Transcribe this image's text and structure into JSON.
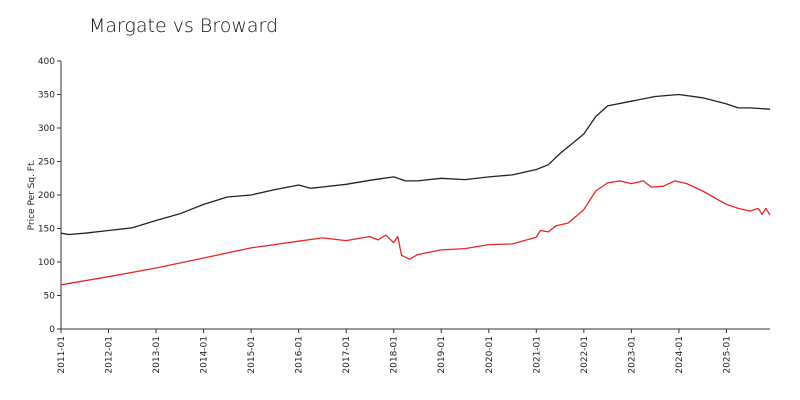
{
  "chart_data": {
    "type": "line",
    "title": "Margate vs Broward",
    "xlabel": "",
    "ylabel": "Price Per Sq. Ft.",
    "ylim": [
      0,
      400
    ],
    "xlim": [
      "2011-01",
      "2025-12"
    ],
    "y_ticks": [
      "0",
      "50",
      "100",
      "150",
      "200",
      "250",
      "300",
      "350",
      "400"
    ],
    "x_ticks": [
      "2011-01",
      "2012-01",
      "2013-01",
      "2014-01",
      "2015-01",
      "2016-01",
      "2017-01",
      "2018-01",
      "2019-01",
      "2020-01",
      "2021-01",
      "2022-01",
      "2023-01",
      "2024-01",
      "2025-01"
    ],
    "grid": false,
    "legend": "none",
    "series": [
      {
        "color": "#222222",
        "points": [
          [
            "2011-01",
            143
          ],
          [
            "2011-03",
            141
          ],
          [
            "2011-07",
            143
          ],
          [
            "2012-01",
            147
          ],
          [
            "2012-07",
            151
          ],
          [
            "2013-01",
            162
          ],
          [
            "2013-07",
            172
          ],
          [
            "2014-01",
            186
          ],
          [
            "2014-07",
            197
          ],
          [
            "2015-01",
            200
          ],
          [
            "2015-07",
            208
          ],
          [
            "2016-01",
            215
          ],
          [
            "2016-04",
            210
          ],
          [
            "2016-07",
            212
          ],
          [
            "2017-01",
            216
          ],
          [
            "2017-07",
            222
          ],
          [
            "2018-01",
            227
          ],
          [
            "2018-04",
            221
          ],
          [
            "2018-07",
            221
          ],
          [
            "2019-01",
            225
          ],
          [
            "2019-07",
            223
          ],
          [
            "2020-01",
            227
          ],
          [
            "2020-07",
            230
          ],
          [
            "2021-01",
            238
          ],
          [
            "2021-04",
            245
          ],
          [
            "2021-07",
            262
          ],
          [
            "2022-01",
            291
          ],
          [
            "2022-04",
            317
          ],
          [
            "2022-07",
            333
          ],
          [
            "2023-01",
            340
          ],
          [
            "2023-07",
            347
          ],
          [
            "2024-01",
            350
          ],
          [
            "2024-07",
            345
          ],
          [
            "2025-01",
            336
          ],
          [
            "2025-04",
            330
          ],
          [
            "2025-07",
            330
          ],
          [
            "2025-12",
            328
          ]
        ]
      },
      {
        "color": "#e8262a",
        "points": [
          [
            "2011-01",
            66
          ],
          [
            "2012-01",
            78
          ],
          [
            "2013-01",
            91
          ],
          [
            "2014-01",
            106
          ],
          [
            "2015-01",
            121
          ],
          [
            "2016-01",
            131
          ],
          [
            "2016-07",
            136
          ],
          [
            "2017-01",
            132
          ],
          [
            "2017-07",
            138
          ],
          [
            "2017-09",
            133
          ],
          [
            "2017-11",
            140
          ],
          [
            "2018-01",
            129
          ],
          [
            "2018-02",
            138
          ],
          [
            "2018-03",
            110
          ],
          [
            "2018-05",
            104
          ],
          [
            "2018-07",
            111
          ],
          [
            "2019-01",
            118
          ],
          [
            "2019-07",
            120
          ],
          [
            "2020-01",
            126
          ],
          [
            "2020-07",
            127
          ],
          [
            "2021-01",
            137
          ],
          [
            "2021-02",
            147
          ],
          [
            "2021-04",
            145
          ],
          [
            "2021-06",
            154
          ],
          [
            "2021-09",
            158
          ],
          [
            "2022-01",
            178
          ],
          [
            "2022-04",
            206
          ],
          [
            "2022-07",
            218
          ],
          [
            "2022-10",
            221
          ],
          [
            "2023-01",
            217
          ],
          [
            "2023-04",
            221
          ],
          [
            "2023-06",
            212
          ],
          [
            "2023-09",
            213
          ],
          [
            "2023-12",
            221
          ],
          [
            "2024-03",
            217
          ],
          [
            "2024-07",
            206
          ],
          [
            "2025-01",
            186
          ],
          [
            "2025-04",
            180
          ],
          [
            "2025-07",
            176
          ],
          [
            "2025-09",
            180
          ],
          [
            "2025-10",
            171
          ],
          [
            "2025-11",
            180
          ],
          [
            "2025-12",
            170
          ]
        ]
      }
    ]
  }
}
